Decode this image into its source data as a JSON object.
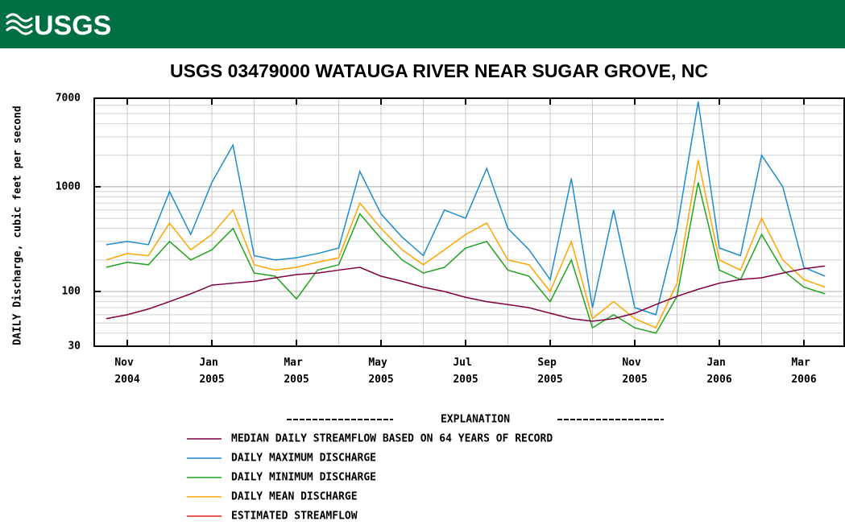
{
  "header": {
    "logo": "USGS"
  },
  "chart_data": {
    "type": "line",
    "title": "USGS 03479000 WATAUGA RIVER NEAR SUGAR GROVE, NC",
    "y_label": "DAILY Discharge, cubic feet per second",
    "legend_title": "EXPLANATION",
    "log_scale": true,
    "grid": true,
    "minor_grid": true,
    "ylim": [
      30,
      7000
    ],
    "yticks": [
      30,
      100,
      1000,
      7000
    ],
    "categories": [
      null,
      "Nov 2004",
      null,
      null,
      null,
      "Jan 2005",
      null,
      null,
      null,
      "Mar 2005",
      null,
      null,
      null,
      "May 2005",
      null,
      null,
      null,
      "Jul 2005",
      null,
      null,
      null,
      "Sep 2005",
      null,
      null,
      null,
      "Nov 2005",
      null,
      null,
      null,
      "Jan 2006",
      null,
      null,
      null,
      "Mar 2006",
      null
    ],
    "series": [
      {
        "name": "MEDIAN DAILY STREAMFLOW BASED ON 64 YEARS OF RECORD",
        "color": "#800040",
        "values": [
          55,
          60,
          68,
          80,
          95,
          115,
          120,
          125,
          135,
          145,
          150,
          160,
          170,
          140,
          125,
          110,
          100,
          88,
          80,
          75,
          70,
          62,
          55,
          52,
          55,
          62,
          75,
          90,
          105,
          120,
          130,
          135,
          150,
          165,
          175
        ]
      },
      {
        "name": "DAILY MAXIMUM DISCHARGE",
        "color": "#1f8ccc",
        "values": [
          280,
          300,
          280,
          900,
          350,
          1100,
          2500,
          220,
          200,
          210,
          230,
          260,
          1400,
          550,
          330,
          220,
          600,
          500,
          1500,
          400,
          250,
          130,
          1200,
          70,
          600,
          70,
          60,
          400,
          6500,
          260,
          220,
          2000,
          1000,
          170,
          140
        ]
      },
      {
        "name": "DAILY MINIMUM DISCHARGE",
        "color": "#21a321",
        "values": [
          170,
          190,
          180,
          300,
          200,
          250,
          400,
          150,
          140,
          85,
          160,
          180,
          550,
          320,
          200,
          150,
          170,
          260,
          300,
          160,
          140,
          80,
          200,
          45,
          60,
          45,
          40,
          90,
          1100,
          160,
          130,
          350,
          160,
          110,
          95
        ]
      },
      {
        "name": "DAILY MEAN DISCHARGE",
        "color": "#ffa500",
        "values": [
          200,
          230,
          220,
          450,
          250,
          350,
          600,
          180,
          160,
          170,
          190,
          210,
          700,
          400,
          250,
          180,
          250,
          350,
          450,
          200,
          180,
          100,
          300,
          55,
          80,
          55,
          45,
          120,
          1800,
          200,
          160,
          500,
          200,
          130,
          110
        ]
      },
      {
        "name": "ESTIMATED STREAMFLOW",
        "color": "#e02020",
        "values": [
          null,
          null,
          null,
          null,
          null,
          null,
          null,
          null,
          null,
          null,
          null,
          null,
          null,
          null,
          null,
          null,
          null,
          null,
          null,
          null,
          null,
          null,
          null,
          null,
          null,
          null,
          null,
          null,
          null,
          null,
          null,
          null,
          null,
          null,
          null
        ]
      }
    ]
  }
}
